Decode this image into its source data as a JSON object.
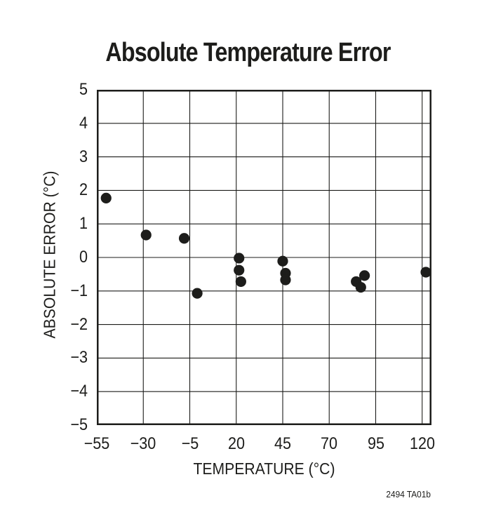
{
  "page": {
    "background": "#ffffff",
    "ink_color": "#1d1d1b"
  },
  "chart_data": {
    "type": "scatter",
    "title": "Absolute Temperature Error",
    "xlabel": "TEMPERATURE (°C)",
    "ylabel": "ABSOLUTE ERROR (°C)",
    "xlim": [
      -55,
      125
    ],
    "ylim": [
      -5,
      5
    ],
    "grid": true,
    "legend": false,
    "marker": {
      "shape": "circle",
      "radius_px": 7.6,
      "color": "#1d1d1b"
    },
    "x_ticks": [
      -55,
      -30,
      -5,
      20,
      45,
      70,
      95,
      120
    ],
    "x_tick_labels": [
      "−55",
      "−30",
      "−5",
      "20",
      "45",
      "70",
      "95",
      "120"
    ],
    "y_ticks": [
      5,
      4,
      3,
      2,
      1,
      0,
      -1,
      -2,
      -3,
      -4,
      -5
    ],
    "y_tick_labels": [
      "5",
      "4",
      "3",
      "2",
      "1",
      "0",
      "−1",
      "−2",
      "−3",
      "−4",
      "−5"
    ],
    "points": [
      {
        "x": -50,
        "y": 1.77
      },
      {
        "x": -28.5,
        "y": 0.67
      },
      {
        "x": -8,
        "y": 0.57
      },
      {
        "x": -1,
        "y": -1.07
      },
      {
        "x": 21.5,
        "y": -0.02
      },
      {
        "x": 21.5,
        "y": -0.38
      },
      {
        "x": 22.5,
        "y": -0.72
      },
      {
        "x": 45,
        "y": -0.11
      },
      {
        "x": 46.5,
        "y": -0.47
      },
      {
        "x": 46.5,
        "y": -0.67
      },
      {
        "x": 84.5,
        "y": -0.72
      },
      {
        "x": 87,
        "y": -0.89
      },
      {
        "x": 89,
        "y": -0.54
      },
      {
        "x": 122,
        "y": -0.44
      }
    ]
  },
  "footnote": "2494 TA01b"
}
